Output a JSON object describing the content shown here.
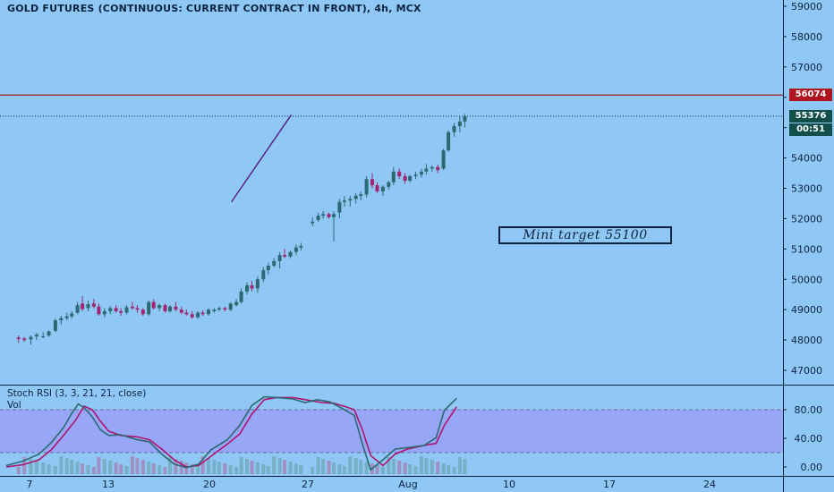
{
  "header": {
    "title": "GOLD FUTURES (CONTINUOUS: CURRENT CONTRACT IN FRONT), 4h, MCX"
  },
  "price_axis": {
    "ticks": [
      "59000",
      "58000",
      "57000",
      "56000",
      "55000",
      "54000",
      "53000",
      "52000",
      "51000",
      "50000",
      "49000",
      "48000",
      "47000"
    ],
    "resistance_label": "56074",
    "last_price_label": "55376",
    "countdown_label": "00:51"
  },
  "indicator": {
    "stoch_label": "Stoch RSI (3, 3, 21, 21, close)",
    "vol_label": "Vol",
    "ticks": [
      "80.00",
      "40.00",
      "0.00"
    ]
  },
  "time_axis": {
    "labels": [
      "7",
      "13",
      "20",
      "27",
      "Aug",
      "10",
      "17",
      "24"
    ]
  },
  "annotation": {
    "text": "Mini target 55100"
  },
  "colors": {
    "background": "#8fc8f4",
    "bull_candle": "#2b6a73",
    "bear_candle": "#a0246e",
    "resistance_line": "#b0141f",
    "trend_line": "#5a1f8c",
    "stoch_k": "#2b6a73",
    "stoch_d": "#b0146e",
    "stoch_band": "#97a6f6",
    "last_price_tag": "#124f4a",
    "resistance_tag": "#b0141f"
  },
  "chart_data": {
    "type": "candlestick",
    "resistance_level": 56074,
    "last_price": 55376,
    "price_range": [
      46600,
      59200
    ],
    "trendline": [
      [
        27.5,
        52550
      ],
      [
        34.8,
        55420
      ]
    ],
    "stoch_range": [
      -10,
      105
    ],
    "stoch_levels": [
      80,
      20
    ],
    "candles": [
      [
        1.5,
        48080,
        48150,
        47900,
        48030
      ],
      [
        2.2,
        48050,
        48100,
        47930,
        48000
      ],
      [
        3,
        48020,
        48150,
        47850,
        48100
      ],
      [
        3.7,
        48120,
        48230,
        48000,
        48180
      ],
      [
        4.5,
        48100,
        48260,
        48060,
        48120
      ],
      [
        5.2,
        48150,
        48320,
        48100,
        48280
      ],
      [
        6,
        48300,
        48700,
        48250,
        48650
      ],
      [
        6.7,
        48650,
        48800,
        48500,
        48720
      ],
      [
        7.4,
        48720,
        48900,
        48650,
        48780
      ],
      [
        8,
        48780,
        48950,
        48700,
        48870
      ],
      [
        8.7,
        48900,
        49250,
        48850,
        49150
      ],
      [
        9.3,
        49200,
        49450,
        48950,
        49020
      ],
      [
        10,
        49050,
        49300,
        48950,
        49180
      ],
      [
        10.7,
        49200,
        49350,
        49050,
        49100
      ],
      [
        11.3,
        49100,
        49200,
        48800,
        48850
      ],
      [
        12,
        48850,
        49050,
        48750,
        48950
      ],
      [
        12.7,
        48950,
        49120,
        48850,
        49050
      ],
      [
        13.4,
        49050,
        49150,
        48900,
        48950
      ],
      [
        14,
        48950,
        49050,
        48800,
        48900
      ],
      [
        14.7,
        48900,
        49150,
        48850,
        49080
      ],
      [
        15.4,
        49100,
        49250,
        49000,
        49050
      ],
      [
        16,
        49050,
        49150,
        48900,
        49000
      ],
      [
        16.7,
        49000,
        49050,
        48800,
        48850
      ],
      [
        17.4,
        48850,
        49300,
        48800,
        49250
      ],
      [
        18,
        49250,
        49350,
        49000,
        49050
      ],
      [
        18.7,
        49050,
        49200,
        48950,
        49150
      ],
      [
        19.4,
        49150,
        49200,
        48900,
        48950
      ],
      [
        20,
        48950,
        49150,
        48900,
        49100
      ],
      [
        20.7,
        49100,
        49250,
        48950,
        49000
      ],
      [
        21.4,
        49000,
        49100,
        48850,
        48900
      ],
      [
        22,
        48900,
        49000,
        48800,
        48850
      ],
      [
        22.7,
        48850,
        48950,
        48700,
        48750
      ],
      [
        23.4,
        48750,
        48950,
        48700,
        48900
      ],
      [
        24,
        48900,
        48980,
        48800,
        48850
      ],
      [
        24.7,
        48850,
        49050,
        48800,
        49000
      ],
      [
        25.4,
        48950,
        49050,
        48900,
        49000
      ],
      [
        26,
        49000,
        49100,
        48950,
        49050
      ],
      [
        26.7,
        49050,
        49100,
        48950,
        49000
      ],
      [
        27.4,
        49000,
        49250,
        48950,
        49200
      ],
      [
        28.1,
        49150,
        49350,
        49100,
        49250
      ],
      [
        28.7,
        49250,
        49700,
        49200,
        49600
      ],
      [
        29.4,
        49600,
        49900,
        49500,
        49800
      ],
      [
        30,
        49800,
        49950,
        49600,
        49700
      ],
      [
        30.7,
        49700,
        50100,
        49550,
        50000
      ],
      [
        31.4,
        50000,
        50400,
        49900,
        50300
      ],
      [
        32,
        50300,
        50550,
        50150,
        50450
      ],
      [
        32.7,
        50450,
        50700,
        50400,
        50600
      ],
      [
        33.4,
        50600,
        50900,
        50350,
        50800
      ],
      [
        34,
        50800,
        51000,
        50700,
        50750
      ],
      [
        34.7,
        50750,
        50950,
        50700,
        50900
      ],
      [
        35.4,
        50900,
        51150,
        50800,
        51050
      ],
      [
        36,
        51050,
        51200,
        50950,
        51100
      ],
      [
        37.4,
        51850,
        52050,
        51750,
        51900
      ],
      [
        38.1,
        51950,
        52200,
        51900,
        52100
      ],
      [
        38.7,
        52100,
        52250,
        52000,
        52150
      ],
      [
        39.4,
        52150,
        52200,
        52000,
        52050
      ],
      [
        40,
        52050,
        52250,
        51250,
        52150
      ],
      [
        40.7,
        52200,
        52650,
        52000,
        52550
      ],
      [
        41.3,
        52550,
        52750,
        52400,
        52600
      ],
      [
        42,
        52600,
        52750,
        52400,
        52650
      ],
      [
        42.7,
        52650,
        52850,
        52500,
        52750
      ],
      [
        43.3,
        52750,
        52900,
        52600,
        52800
      ],
      [
        44,
        52800,
        53400,
        52700,
        53300
      ],
      [
        44.7,
        53300,
        53500,
        53000,
        53100
      ],
      [
        45.3,
        53100,
        53200,
        52850,
        52900
      ],
      [
        46,
        52900,
        53100,
        52750,
        53050
      ],
      [
        46.7,
        53050,
        53250,
        52950,
        53200
      ],
      [
        47.3,
        53200,
        53700,
        53100,
        53550
      ],
      [
        48,
        53550,
        53650,
        53300,
        53400
      ],
      [
        48.7,
        53400,
        53500,
        53150,
        53250
      ],
      [
        49.3,
        53250,
        53450,
        53200,
        53400
      ],
      [
        50,
        53400,
        53550,
        53300,
        53450
      ],
      [
        50.7,
        53450,
        53650,
        53350,
        53550
      ],
      [
        51.3,
        53550,
        53800,
        53450,
        53650
      ],
      [
        52,
        53650,
        53750,
        53550,
        53700
      ],
      [
        52.7,
        53700,
        53780,
        53500,
        53600
      ],
      [
        53.4,
        53650,
        54300,
        53600,
        54250
      ],
      [
        54,
        54250,
        54900,
        54200,
        54850
      ],
      [
        54.7,
        54850,
        55150,
        54700,
        55050
      ],
      [
        55.4,
        55050,
        55350,
        54850,
        55200
      ],
      [
        56,
        55200,
        55450,
        55000,
        55376
      ]
    ],
    "stoch_k": [
      [
        0,
        2
      ],
      [
        2,
        8
      ],
      [
        4,
        18
      ],
      [
        5.5,
        34
      ],
      [
        7,
        55
      ],
      [
        8,
        75
      ],
      [
        8.8,
        88
      ],
      [
        9.5,
        83
      ],
      [
        10.5,
        70
      ],
      [
        11.5,
        52
      ],
      [
        12.5,
        44
      ],
      [
        14,
        45
      ],
      [
        16,
        38
      ],
      [
        17.5,
        35
      ],
      [
        19,
        18
      ],
      [
        20.5,
        4
      ],
      [
        22,
        -1
      ],
      [
        23.5,
        4
      ],
      [
        25,
        24
      ],
      [
        27,
        38
      ],
      [
        28.5,
        58
      ],
      [
        30,
        86
      ],
      [
        31.5,
        98
      ],
      [
        33,
        97
      ],
      [
        35,
        95
      ],
      [
        36.5,
        90
      ],
      [
        38,
        94
      ],
      [
        39.5,
        91
      ],
      [
        41,
        82
      ],
      [
        42.5,
        72
      ],
      [
        43.5,
        32
      ],
      [
        44.5,
        -4
      ],
      [
        46,
        10
      ],
      [
        47.5,
        25
      ],
      [
        49,
        27
      ],
      [
        51,
        30
      ],
      [
        52.5,
        41
      ],
      [
        53.5,
        79
      ],
      [
        55,
        96
      ]
    ],
    "stoch_d": [
      [
        0,
        0
      ],
      [
        2,
        3
      ],
      [
        4,
        10
      ],
      [
        5.5,
        24
      ],
      [
        7,
        44
      ],
      [
        8.5,
        66
      ],
      [
        9.5,
        85
      ],
      [
        10.5,
        80
      ],
      [
        11.5,
        64
      ],
      [
        12.5,
        50
      ],
      [
        14,
        44
      ],
      [
        16,
        42
      ],
      [
        17.5,
        38
      ],
      [
        19,
        25
      ],
      [
        20.5,
        10
      ],
      [
        22,
        0
      ],
      [
        23.5,
        2
      ],
      [
        25,
        15
      ],
      [
        27,
        32
      ],
      [
        28.5,
        46
      ],
      [
        30,
        74
      ],
      [
        31.5,
        94
      ],
      [
        33,
        97
      ],
      [
        35,
        97
      ],
      [
        37,
        93
      ],
      [
        38.5,
        90
      ],
      [
        40,
        89
      ],
      [
        41.5,
        84
      ],
      [
        42.5,
        80
      ],
      [
        43.5,
        52
      ],
      [
        44.5,
        16
      ],
      [
        46,
        2
      ],
      [
        47.5,
        18
      ],
      [
        49,
        25
      ],
      [
        51,
        30
      ],
      [
        52.5,
        33
      ],
      [
        53.5,
        58
      ],
      [
        55,
        84
      ]
    ]
  }
}
